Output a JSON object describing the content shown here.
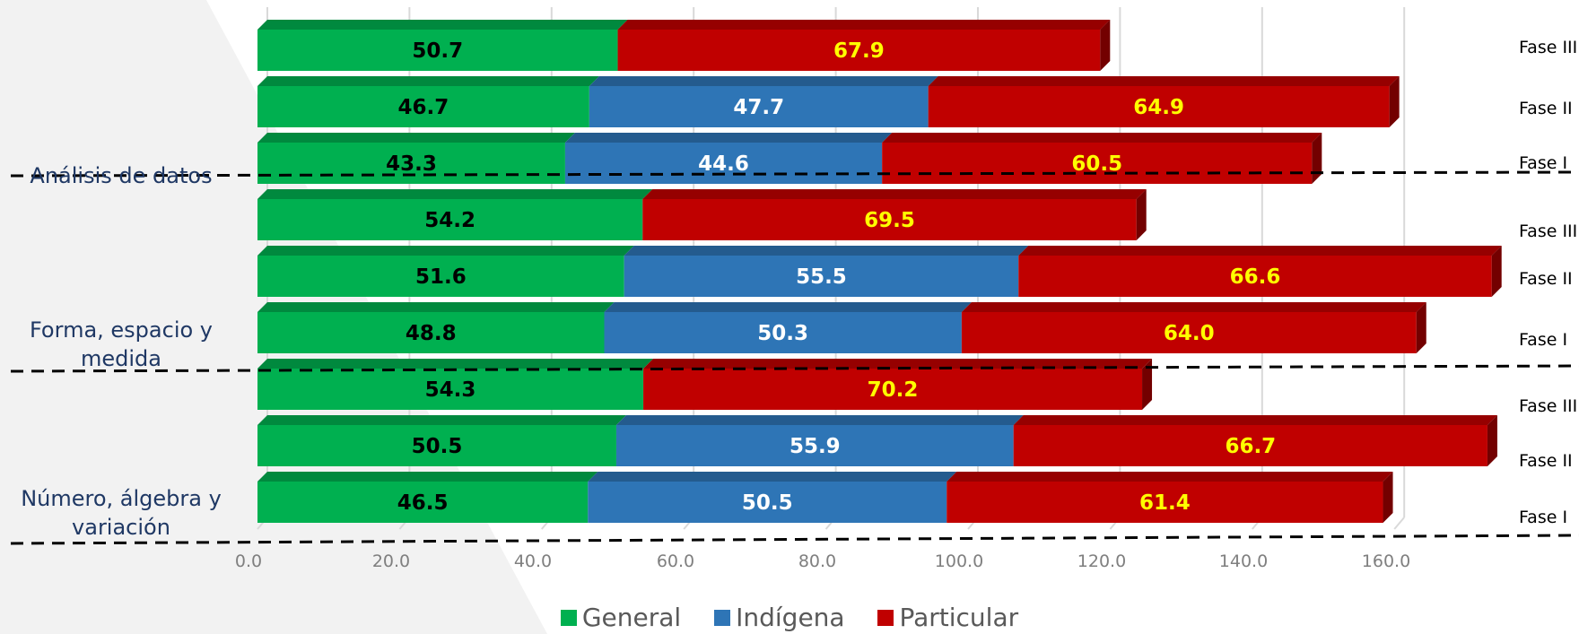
{
  "chart_data": {
    "type": "bar",
    "orientation": "horizontal",
    "stacked": true,
    "xlim": [
      0,
      160
    ],
    "x_ticks": [
      "0.0",
      "20.0",
      "40.0",
      "60.0",
      "80.0",
      "100.0",
      "120.0",
      "140.0",
      "160.0"
    ],
    "grid": true,
    "legend_position": "bottom",
    "groups": [
      {
        "label": "Número, álgebra y variación",
        "phases": [
          "Fase I",
          "Fase II",
          "Fase III"
        ]
      },
      {
        "label": "Forma, espacio y medida",
        "phases": [
          "Fase I",
          "Fase II",
          "Fase III"
        ]
      },
      {
        "label": "Análisis de datos",
        "phases": [
          "Fase I",
          "Fase II",
          "Fase III"
        ]
      }
    ],
    "rows_top_to_bottom": [
      {
        "group": "Análisis de datos",
        "phase": "Fase III",
        "general": "50.7",
        "indigena": null,
        "particular": "67.9"
      },
      {
        "group": "Análisis de datos",
        "phase": "Fase II",
        "general": "46.7",
        "indigena": "47.7",
        "particular": "64.9"
      },
      {
        "group": "Análisis de datos",
        "phase": "Fase I",
        "general": "43.3",
        "indigena": "44.6",
        "particular": "60.5"
      },
      {
        "group": "Forma, espacio y medida",
        "phase": "Fase III",
        "general": "54.2",
        "indigena": null,
        "particular": "69.5"
      },
      {
        "group": "Forma, espacio y medida",
        "phase": "Fase II",
        "general": "51.6",
        "indigena": "55.5",
        "particular": "66.6"
      },
      {
        "group": "Forma, espacio y medida",
        "phase": "Fase I",
        "general": "48.8",
        "indigena": "50.3",
        "particular": "64.0"
      },
      {
        "group": "Número, álgebra y variación",
        "phase": "Fase III",
        "general": "54.3",
        "indigena": null,
        "particular": "70.2"
      },
      {
        "group": "Número, álgebra y variación",
        "phase": "Fase II",
        "general": "50.5",
        "indigena": "55.9",
        "particular": "66.7"
      },
      {
        "group": "Número, álgebra y variación",
        "phase": "Fase I",
        "general": "46.5",
        "indigena": "50.5",
        "particular": "61.4"
      }
    ],
    "series": [
      {
        "key": "general",
        "name": "General",
        "color": "#00b050",
        "label_color": "#000000"
      },
      {
        "key": "indigena",
        "name": "Indígena",
        "color": "#2e75b6",
        "label_color": "#ffffff"
      },
      {
        "key": "particular",
        "name": "Particular",
        "color": "#c00000",
        "label_color": "#ffff00"
      }
    ]
  },
  "category_labels": {
    "analisis": "Análisis de datos",
    "forma_line1": "Forma, espacio y",
    "forma_line2": "medida",
    "numero_line1": "Número, álgebra y",
    "numero_line2": "variación"
  },
  "legend": {
    "general": "General",
    "indigena": "Indígena",
    "particular": "Particular"
  }
}
